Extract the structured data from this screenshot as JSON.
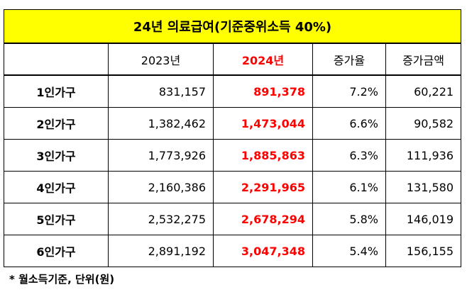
{
  "title": "24년 의료급여(기준중위소득 40%)",
  "columns": {
    "col0": "",
    "col1": "2023년",
    "col2": "2024년",
    "col3": "증가율",
    "col4": "증가금액"
  },
  "rows": [
    {
      "label": "1인가구",
      "y2023": "831,157",
      "y2024": "891,378",
      "rate": "7.2%",
      "amount": "60,221"
    },
    {
      "label": "2인가구",
      "y2023": "1,382,462",
      "y2024": "1,473,044",
      "rate": "6.6%",
      "amount": "90,582"
    },
    {
      "label": "3인가구",
      "y2023": "1,773,926",
      "y2024": "1,885,863",
      "rate": "6.3%",
      "amount": "111,936"
    },
    {
      "label": "4인가구",
      "y2023": "2,160,386",
      "y2024": "2,291,965",
      "rate": "6.1%",
      "amount": "131,580"
    },
    {
      "label": "5인가구",
      "y2023": "2,532,275",
      "y2024": "2,678,294",
      "rate": "5.8%",
      "amount": "146,019"
    },
    {
      "label": "6인가구",
      "y2023": "2,891,192",
      "y2024": "3,047,348",
      "rate": "5.4%",
      "amount": "156,155"
    }
  ],
  "footnote": "* 월소득기준, 단위(원)",
  "colors": {
    "title_bg": "#ffff00",
    "highlight": "#ff0000",
    "border": "#000000"
  }
}
